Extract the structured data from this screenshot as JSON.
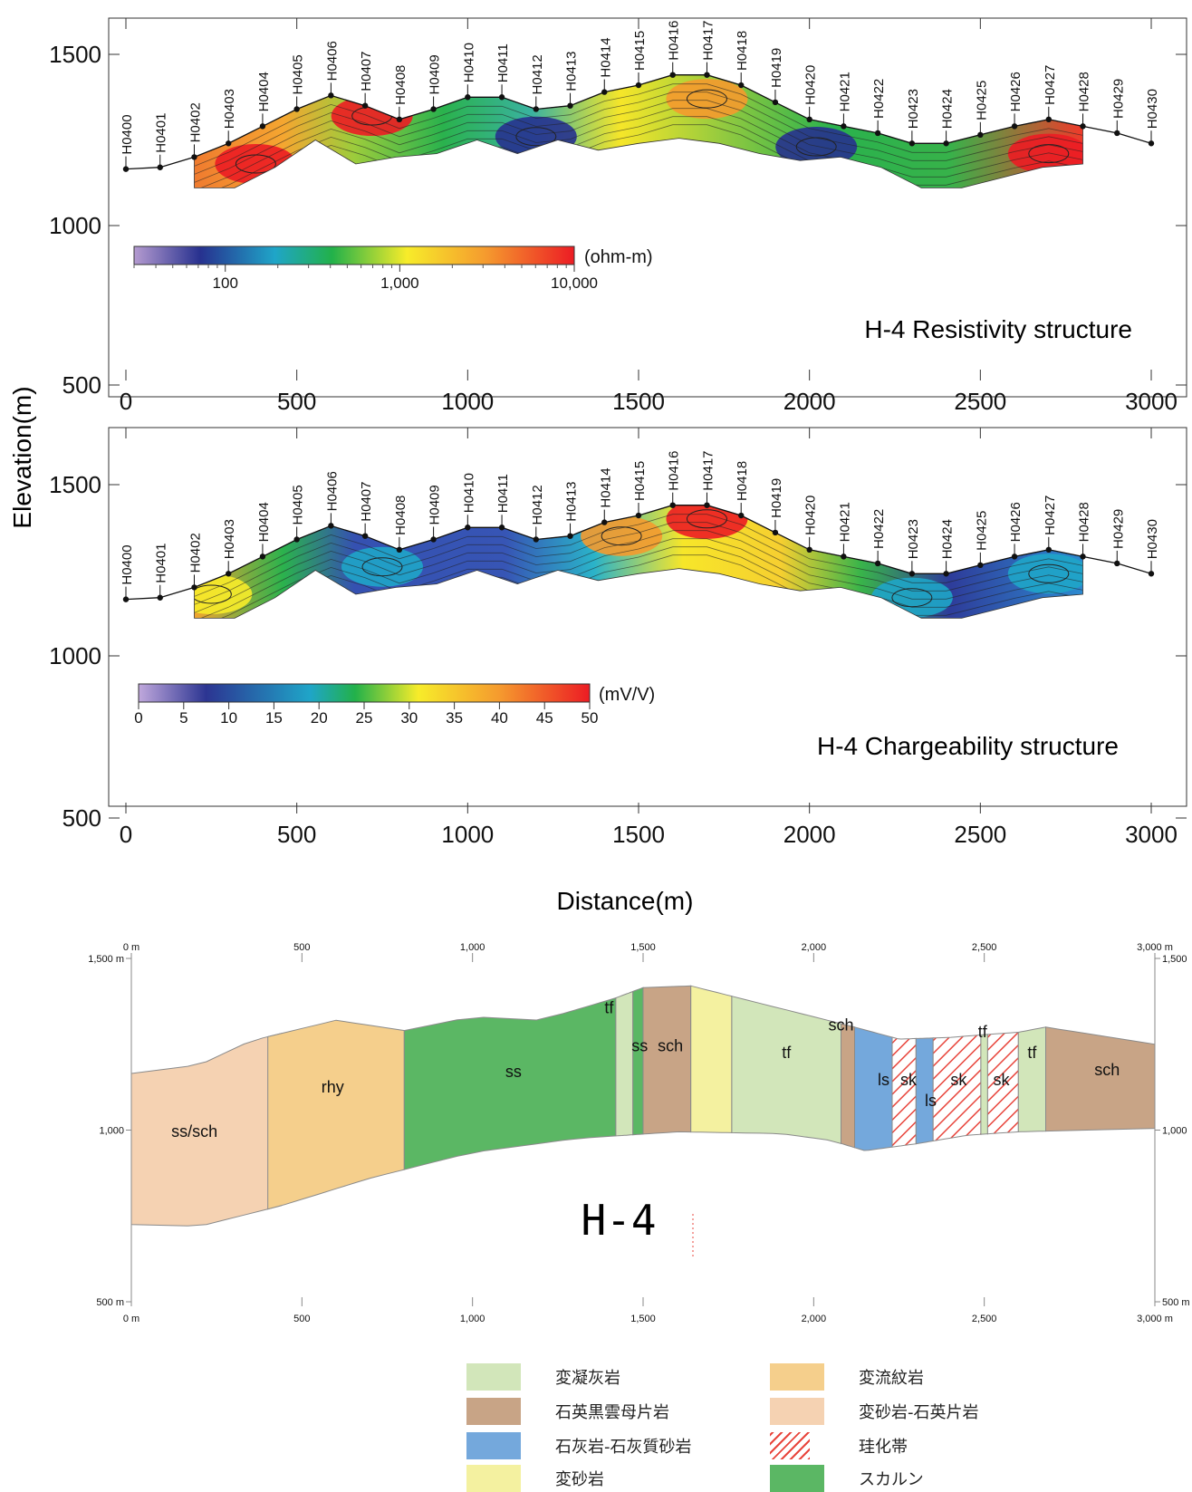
{
  "figure": {
    "ylabel": "Elevation(m)",
    "xlabel": "Distance(m)"
  },
  "chart_data": [
    {
      "type": "heatmap",
      "title": "H-4 Resistivity structure",
      "xlabel": "Distance(m)",
      "ylabel": "Elevation(m)",
      "xlim": [
        0,
        3000
      ],
      "ylim": [
        500,
        1600
      ],
      "x_ticks": [
        0,
        500,
        1000,
        1500,
        2000,
        2500,
        3000
      ],
      "x_tick_labels": [
        "0",
        "500",
        "1000",
        "1500",
        "2000",
        "2500",
        "3000"
      ],
      "y_ticks": [
        500,
        1000,
        1500
      ],
      "y_tick_labels": [
        "500",
        "1000",
        "1500"
      ],
      "colorbar": {
        "unit": "(ohm-m)",
        "scale": "log",
        "range": [
          30,
          10000
        ],
        "tick_values": [
          100,
          1000,
          10000
        ],
        "tick_labels": [
          "100",
          "1,000",
          "10,000"
        ]
      },
      "stations": [
        "H0400",
        "H0401",
        "H0402",
        "H0403",
        "H0404",
        "H0405",
        "H0406",
        "H0407",
        "H0408",
        "H0409",
        "H0410",
        "H0411",
        "H0412",
        "H0413",
        "H0414",
        "H0415",
        "H0416",
        "H0417",
        "H0418",
        "H0419",
        "H0420",
        "H0421",
        "H0422",
        "H0423",
        "H0424",
        "H0425",
        "H0426",
        "H0427",
        "H0428",
        "H0429",
        "H0430"
      ],
      "station_x": [
        0,
        100,
        200,
        300,
        400,
        500,
        600,
        700,
        800,
        900,
        1000,
        1100,
        1200,
        1300,
        1400,
        1500,
        1600,
        1700,
        1800,
        1900,
        2000,
        2100,
        2200,
        2300,
        2400,
        2500,
        2600,
        2700,
        2800,
        2900,
        3000
      ],
      "topography_x": [
        0,
        100,
        200,
        300,
        400,
        500,
        600,
        700,
        800,
        900,
        1000,
        1100,
        1200,
        1300,
        1400,
        1500,
        1600,
        1700,
        1800,
        1900,
        2000,
        2100,
        2200,
        2300,
        2400,
        2500,
        2600,
        2700,
        2800,
        2900,
        3000
      ],
      "topography_elev": [
        1165,
        1170,
        1200,
        1240,
        1290,
        1340,
        1380,
        1350,
        1310,
        1340,
        1375,
        1375,
        1340,
        1350,
        1390,
        1410,
        1440,
        1440,
        1410,
        1360,
        1310,
        1290,
        1270,
        1240,
        1240,
        1265,
        1290,
        1310,
        1290,
        1270,
        1240
      ],
      "section_x_range": [
        200,
        2800
      ],
      "section_bottom_elev": [
        1110,
        1110,
        1170,
        1250,
        1180,
        1200,
        1210,
        1250,
        1210,
        1250,
        1220,
        1240,
        1255,
        1240,
        1210,
        1190,
        1200,
        1170,
        1110,
        1110,
        1140,
        1170,
        1180
      ],
      "anomalies": [
        {
          "x": 720,
          "elev": 1320,
          "value": 8000
        },
        {
          "x": 1200,
          "elev": 1260,
          "value": 40
        },
        {
          "x": 2700,
          "elev": 1210,
          "value": 9000
        },
        {
          "x": 2020,
          "elev": 1230,
          "value": 60
        },
        {
          "x": 1700,
          "elev": 1370,
          "value": 2000
        },
        {
          "x": 380,
          "elev": 1180,
          "value": 4000
        }
      ]
    },
    {
      "type": "heatmap",
      "title": "H-4 Chargeability structure",
      "xlabel": "Distance(m)",
      "ylabel": "Elevation(m)",
      "xlim": [
        0,
        3000
      ],
      "ylim": [
        500,
        1600
      ],
      "x_ticks": [
        0,
        500,
        1000,
        1500,
        2000,
        2500,
        3000
      ],
      "x_tick_labels": [
        "0",
        "500",
        "1000",
        "1500",
        "2000",
        "2500",
        "3000"
      ],
      "y_ticks": [
        500,
        1000,
        1500
      ],
      "y_tick_labels": [
        "500",
        "1000",
        "1500"
      ],
      "colorbar": {
        "unit": "(mV/V)",
        "scale": "linear",
        "range": [
          0,
          50
        ],
        "tick_values": [
          0,
          5,
          10,
          15,
          20,
          25,
          30,
          35,
          40,
          45,
          50
        ],
        "tick_labels": [
          "0",
          "5",
          "10",
          "15",
          "20",
          "25",
          "30",
          "35",
          "40",
          "45",
          "50"
        ]
      },
      "stations": [
        "H0400",
        "H0401",
        "H0402",
        "H0403",
        "H0404",
        "H0405",
        "H0406",
        "H0407",
        "H0408",
        "H0409",
        "H0410",
        "H0411",
        "H0412",
        "H0413",
        "H0414",
        "H0415",
        "H0416",
        "H0417",
        "H0418",
        "H0419",
        "H0420",
        "H0421",
        "H0422",
        "H0423",
        "H0424",
        "H0425",
        "H0426",
        "H0427",
        "H0428",
        "H0429",
        "H0430"
      ],
      "station_x": [
        0,
        100,
        200,
        300,
        400,
        500,
        600,
        700,
        800,
        900,
        1000,
        1100,
        1200,
        1300,
        1400,
        1500,
        1600,
        1700,
        1800,
        1900,
        2000,
        2100,
        2200,
        2300,
        2400,
        2500,
        2600,
        2700,
        2800,
        2900,
        3000
      ],
      "anomalies": [
        {
          "x": 750,
          "elev": 1260,
          "value": 8
        },
        {
          "x": 1700,
          "elev": 1400,
          "value": 45
        },
        {
          "x": 2300,
          "elev": 1170,
          "value": 8
        },
        {
          "x": 2700,
          "elev": 1240,
          "value": 18
        },
        {
          "x": 1450,
          "elev": 1350,
          "value": 33
        },
        {
          "x": 250,
          "elev": 1180,
          "value": 25
        }
      ]
    },
    {
      "type": "diagram",
      "title": "H-4",
      "xlim": [
        0,
        3000
      ],
      "ylim": [
        500,
        1500
      ],
      "x_tick_labels": [
        "0 m",
        "500",
        "1,000",
        "1,500",
        "2,000",
        "2,500",
        "3,000 m"
      ],
      "x_tick_values": [
        0,
        500,
        1000,
        1500,
        2000,
        2500,
        3000
      ],
      "y_tick_labels_left": [
        "1,500 m",
        "1,000",
        "500 m"
      ],
      "y_tick_labels_right": [
        "1,500",
        "1,000",
        "500 m"
      ],
      "y_tick_values": [
        1500,
        1000,
        500
      ],
      "units": [
        {
          "label": "ss/sch",
          "legend": 3,
          "x_range": [
            0,
            440
          ],
          "label_pos": [
            185,
            980
          ]
        },
        {
          "label": "rhy",
          "legend": 1,
          "x_range": [
            400,
            800
          ],
          "label_pos": [
            590,
            1110
          ]
        },
        {
          "label": "ss",
          "legend": 7,
          "x_range": [
            800,
            1420
          ],
          "label_pos": [
            1120,
            1155
          ]
        },
        {
          "label": "tf",
          "legend": 0,
          "x_range": [
            1420,
            1470
          ],
          "label_pos": [
            1400,
            1340
          ]
        },
        {
          "label": "ss",
          "legend": 7,
          "x_range": [
            1470,
            1500
          ],
          "label_pos": [
            1490,
            1230
          ]
        },
        {
          "label": "sch",
          "legend": 2,
          "x_range": [
            1500,
            1640
          ],
          "label_pos": [
            1580,
            1230
          ]
        },
        {
          "label": "",
          "legend": 6,
          "x_range": [
            1640,
            1760
          ],
          "label_pos": null
        },
        {
          "label": "tf",
          "legend": 0,
          "x_range": [
            1760,
            2080
          ],
          "label_pos": [
            1920,
            1210
          ]
        },
        {
          "label": "sch",
          "legend": 2,
          "x_range": [
            2080,
            2120
          ],
          "label_pos": [
            2080,
            1290
          ]
        },
        {
          "label": "ls",
          "legend": 4,
          "x_range": [
            2120,
            2230
          ],
          "label_pos": [
            2205,
            1130
          ]
        },
        {
          "label": "sk",
          "legend": 5,
          "x_range": [
            2230,
            2300
          ],
          "label_pos": [
            2278,
            1130
          ]
        },
        {
          "label": "ls",
          "legend": 4,
          "x_range": [
            2300,
            2350
          ],
          "label_pos": [
            2343,
            1070
          ]
        },
        {
          "label": "sk",
          "legend": 5,
          "x_range": [
            2350,
            2490
          ],
          "label_pos": [
            2425,
            1130
          ]
        },
        {
          "label": "tf",
          "legend": 0,
          "x_range": [
            2490,
            2510
          ],
          "label_pos": [
            2495,
            1270
          ]
        },
        {
          "label": "sk",
          "legend": 5,
          "x_range": [
            2510,
            2600
          ],
          "label_pos": [
            2550,
            1130
          ]
        },
        {
          "label": "tf",
          "legend": 0,
          "x_range": [
            2600,
            2680
          ],
          "label_pos": [
            2640,
            1210
          ]
        },
        {
          "label": "sch",
          "legend": 2,
          "x_range": [
            2680,
            3000
          ],
          "label_pos": [
            2860,
            1160
          ]
        }
      ]
    }
  ],
  "legend": {
    "items": [
      {
        "label": "変凝灰岩",
        "color": "#d2e6ba",
        "pattern": "solid"
      },
      {
        "label": "変流紋岩",
        "color": "#f5cf8c",
        "pattern": "solid"
      },
      {
        "label": "石英黒雲母片岩",
        "color": "#c8a486",
        "pattern": "solid"
      },
      {
        "label": "変砂岩-石英片岩",
        "color": "#f5d2b2",
        "pattern": "solid"
      },
      {
        "label": "石灰岩-石灰質砂岩",
        "color": "#74a8dc",
        "pattern": "solid"
      },
      {
        "label": "珪化帯",
        "color": "#e8453c",
        "pattern": "hatch"
      },
      {
        "label": "変砂岩",
        "color": "#f4f1a0",
        "pattern": "solid"
      },
      {
        "label": "スカルン",
        "color": "#5bb764",
        "pattern": "solid"
      }
    ]
  }
}
